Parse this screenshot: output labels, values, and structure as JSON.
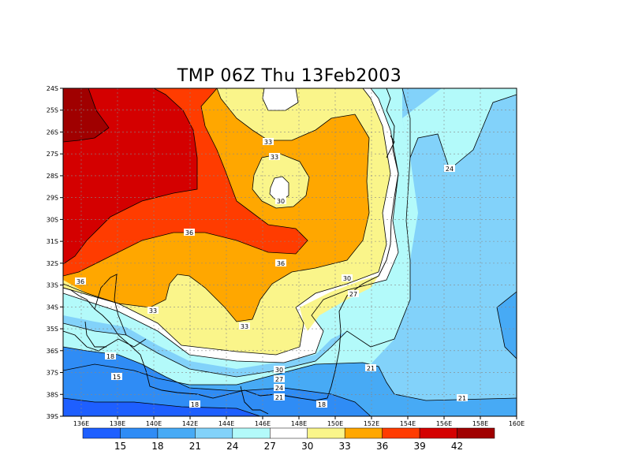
{
  "title": "TMP 06Z Thu 13Feb2003",
  "lat_labels": [
    "24S",
    "25S",
    "26S",
    "27S",
    "28S",
    "29S",
    "30S",
    "31S",
    "32S",
    "33S",
    "34S",
    "35S",
    "36S",
    "37S",
    "38S",
    "39S"
  ],
  "lon_labels": [
    "136E",
    "138E",
    "140E",
    "142E",
    "144E",
    "146E",
    "148E",
    "150E",
    "152E",
    "154E",
    "156E",
    "158E",
    "160E"
  ],
  "colorbar": {
    "labels": [
      "15",
      "18",
      "21",
      "24",
      "27",
      "30",
      "33",
      "36",
      "39",
      "42"
    ],
    "colors": [
      "#1e5fff",
      "#2f8cf5",
      "#47aaf5",
      "#82d2fa",
      "#b3fafa",
      "#ffffff",
      "#faf58a",
      "#ffa700",
      "#ff3c00",
      "#d40000",
      "#a00000"
    ]
  },
  "contour_labels": [
    {
      "text": "33"
    },
    {
      "text": "33"
    },
    {
      "text": "30"
    },
    {
      "text": "36"
    },
    {
      "text": "36"
    },
    {
      "text": "36"
    },
    {
      "text": "33"
    },
    {
      "text": "33"
    },
    {
      "text": "30"
    },
    {
      "text": "27"
    },
    {
      "text": "24"
    },
    {
      "text": "21"
    },
    {
      "text": "21"
    },
    {
      "text": "18"
    },
    {
      "text": "18"
    },
    {
      "text": "15"
    },
    {
      "text": "18"
    },
    {
      "text": "30"
    },
    {
      "text": "27"
    },
    {
      "text": "24"
    },
    {
      "text": "21"
    }
  ]
}
